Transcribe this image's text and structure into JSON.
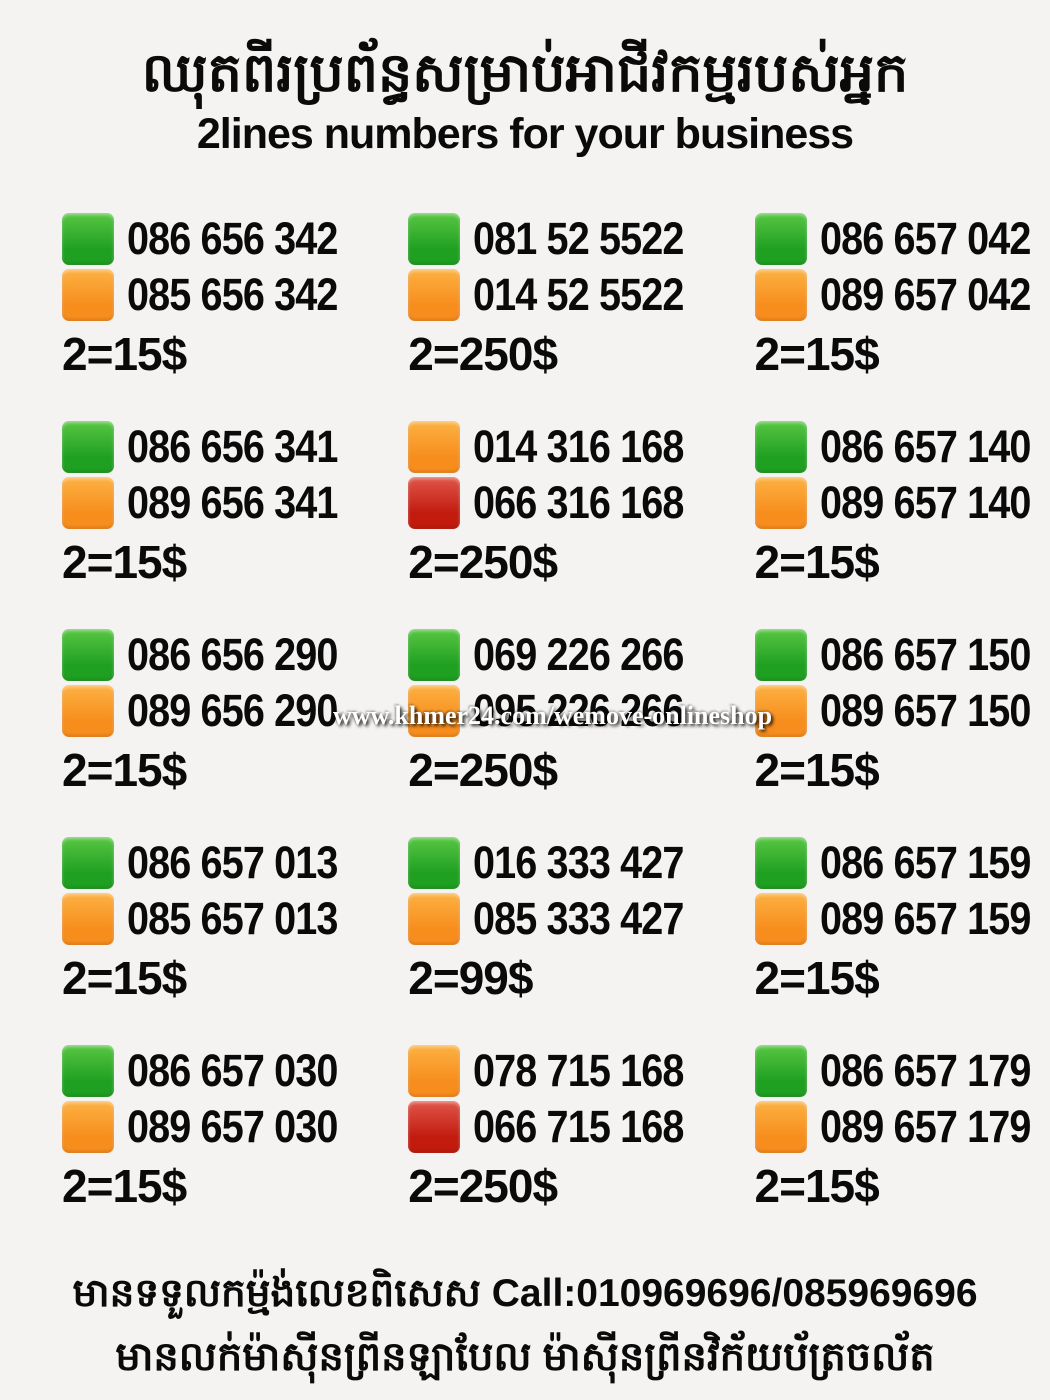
{
  "header": {
    "title_khmer": "ឈុតពីរប្រព័ន្ធសម្រាប់អាជីវកម្មរបស់អ្នក",
    "title_english": "2lines numbers for your business"
  },
  "colors": {
    "green": {
      "top": "#58c643",
      "bottom": "#1fa021"
    },
    "orange": {
      "top": "#fcb243",
      "bottom": "#f78d1d"
    },
    "red": {
      "top": "#e0564a",
      "bottom": "#c21b0e"
    }
  },
  "grid": {
    "cells": [
      {
        "lines": [
          {
            "color": "green",
            "number": "086 656 342"
          },
          {
            "color": "orange",
            "number": "085 656 342"
          }
        ],
        "price": "2=15$"
      },
      {
        "lines": [
          {
            "color": "green",
            "number": "081 52 5522"
          },
          {
            "color": "orange",
            "number": "014 52 5522"
          }
        ],
        "price": "2=250$"
      },
      {
        "lines": [
          {
            "color": "green",
            "number": "086 657 042"
          },
          {
            "color": "orange",
            "number": "089 657 042"
          }
        ],
        "price": "2=15$"
      },
      {
        "lines": [
          {
            "color": "green",
            "number": "086 656 341"
          },
          {
            "color": "orange",
            "number": "089 656 341"
          }
        ],
        "price": "2=15$"
      },
      {
        "lines": [
          {
            "color": "orange",
            "number": "014 316 168"
          },
          {
            "color": "red",
            "number": "066 316 168"
          }
        ],
        "price": "2=250$"
      },
      {
        "lines": [
          {
            "color": "green",
            "number": "086 657 140"
          },
          {
            "color": "orange",
            "number": "089 657 140"
          }
        ],
        "price": "2=15$"
      },
      {
        "lines": [
          {
            "color": "green",
            "number": "086 656 290"
          },
          {
            "color": "orange",
            "number": "089 656 290"
          }
        ],
        "price": "2=15$"
      },
      {
        "lines": [
          {
            "color": "green",
            "number": "069 226 266"
          },
          {
            "color": "orange",
            "number": "095 226 266"
          }
        ],
        "price": "2=250$"
      },
      {
        "lines": [
          {
            "color": "green",
            "number": "086 657 150"
          },
          {
            "color": "orange",
            "number": "089 657 150"
          }
        ],
        "price": "2=15$"
      },
      {
        "lines": [
          {
            "color": "green",
            "number": "086 657 013"
          },
          {
            "color": "orange",
            "number": "085 657 013"
          }
        ],
        "price": "2=15$"
      },
      {
        "lines": [
          {
            "color": "green",
            "number": "016 333 427"
          },
          {
            "color": "orange",
            "number": "085 333 427"
          }
        ],
        "price": "2=99$"
      },
      {
        "lines": [
          {
            "color": "green",
            "number": "086 657 159"
          },
          {
            "color": "orange",
            "number": "089 657 159"
          }
        ],
        "price": "2=15$"
      },
      {
        "lines": [
          {
            "color": "green",
            "number": "086 657 030"
          },
          {
            "color": "orange",
            "number": "089 657 030"
          }
        ],
        "price": "2=15$"
      },
      {
        "lines": [
          {
            "color": "orange",
            "number": "078 715 168"
          },
          {
            "color": "red",
            "number": "066 715 168"
          }
        ],
        "price": "2=250$"
      },
      {
        "lines": [
          {
            "color": "green",
            "number": "086 657 179"
          },
          {
            "color": "orange",
            "number": "089 657 179"
          }
        ],
        "price": "2=15$"
      }
    ]
  },
  "watermark": {
    "text": "www.khmer24.com/wemove-onlineshop"
  },
  "footer": {
    "line1": "មានទទួលកម្ម៉ង់លេខពិសេស Call:010969696/085969696",
    "line2": "មានលក់ម៉ាស៊ីនព្រីនឡាបែល ម៉ាស៊ីនព្រីនវិក័យប័ត្រចល័ត"
  }
}
